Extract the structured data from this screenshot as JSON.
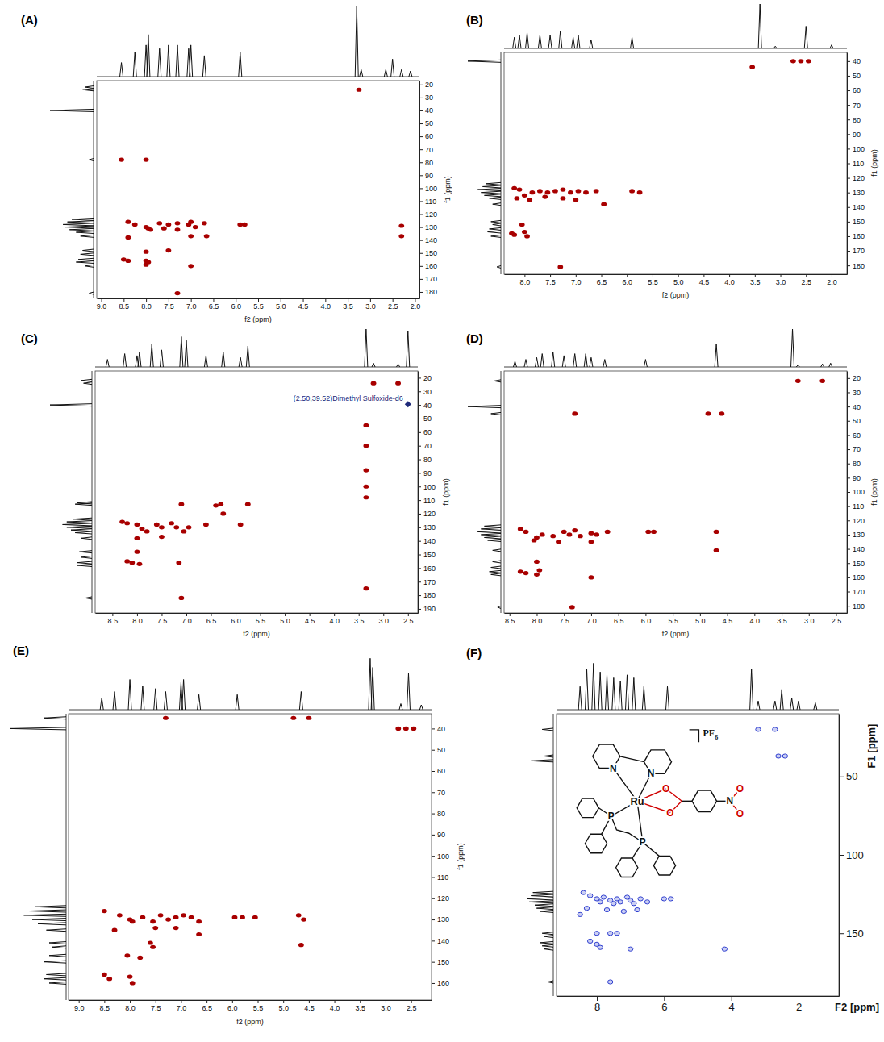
{
  "chart_data": [
    {
      "type": "scatter",
      "title": "(A)",
      "x_label": "f2 (ppm)",
      "y_label": "f1 (ppm)",
      "color": "#a80000",
      "marker": "ellipse",
      "xlim": [
        9.1,
        1.9
      ],
      "xticks": [
        {
          "value": 9,
          "label": "9.0"
        },
        8.5,
        {
          "value": 8,
          "label": "8.0"
        },
        7.5,
        {
          "value": 7,
          "label": "7.0"
        },
        6.5,
        {
          "value": 6,
          "label": "6.0"
        },
        5.5,
        {
          "value": 5,
          "label": "5.0"
        },
        4.5,
        {
          "value": 4,
          "label": "4.0"
        },
        3.5,
        {
          "value": 3,
          "label": "3.0"
        },
        2.5,
        {
          "value": 2,
          "label": "2.0"
        }
      ],
      "ylim": [
        17,
        185
      ],
      "yticks": [
        20,
        30,
        40,
        50,
        60,
        70,
        80,
        90,
        100,
        110,
        120,
        130,
        140,
        150,
        160,
        170,
        180
      ],
      "x": [
        8.55,
        8.0,
        8.4,
        8.25,
        8.0,
        7.95,
        7.9,
        7.7,
        7.5,
        7.3,
        7.05,
        7.0,
        6.9,
        6.7,
        5.9,
        5.8,
        8.4,
        7.0,
        6.65,
        7.5,
        8.0,
        8.5,
        8.4,
        8.0,
        7.95,
        8.0,
        7.0,
        7.3,
        3.25,
        2.3,
        2.3,
        7.6,
        7.3
      ],
      "values": [
        78,
        78,
        126,
        128,
        130,
        131,
        132,
        127,
        128,
        127,
        128,
        126,
        130,
        127,
        128,
        128,
        138,
        137,
        137,
        148,
        149,
        155,
        156,
        156,
        157,
        159,
        160,
        181,
        24,
        129,
        137,
        131,
        132
      ],
      "projection_f2": {
        "ppm": [
          8.55,
          8.25,
          8.0,
          7.95,
          7.7,
          7.5,
          7.3,
          7.05,
          7.0,
          6.7,
          5.9,
          3.3,
          3.2,
          2.65,
          2.5,
          2.3,
          2.1
        ],
        "intensity": [
          20,
          35,
          45,
          60,
          40,
          45,
          45,
          40,
          45,
          30,
          35,
          100,
          10,
          10,
          25,
          10,
          8
        ],
        "lim": [
          0,
          100
        ]
      },
      "projection_f1": {
        "ppm": [
          22,
          24,
          40,
          78,
          124,
          126,
          128,
          130,
          132,
          134,
          137,
          148,
          151,
          155,
          157,
          160,
          181
        ],
        "intensity": [
          20,
          25,
          100,
          10,
          50,
          60,
          70,
          65,
          55,
          40,
          30,
          25,
          30,
          35,
          40,
          20,
          10
        ],
        "lim": [
          0,
          100
        ]
      }
    },
    {
      "type": "scatter",
      "title": "(B)",
      "x_label": "f2 (ppm)",
      "y_label": "f1 (ppm)",
      "color": "#a80000",
      "marker": "ellipse",
      "xlim": [
        8.4,
        1.7
      ],
      "xticks": [
        {
          "value": 8,
          "label": "8.0"
        },
        7.5,
        {
          "value": 7,
          "label": "7.0"
        },
        6.5,
        {
          "value": 6,
          "label": "6.0"
        },
        5.5,
        {
          "value": 5,
          "label": "5.0"
        },
        4.5,
        {
          "value": 4,
          "label": "4.0"
        },
        3.5,
        {
          "value": 3,
          "label": "3.0"
        },
        2.5,
        {
          "value": 2,
          "label": "2.0"
        }
      ],
      "ylim": [
        34,
        186
      ],
      "yticks": [
        40,
        50,
        60,
        70,
        80,
        90,
        100,
        110,
        120,
        130,
        140,
        150,
        160,
        170,
        180
      ],
      "x": [
        8.2,
        8.1,
        8.0,
        7.85,
        7.7,
        7.55,
        7.4,
        7.25,
        7.1,
        6.95,
        6.8,
        6.6,
        5.9,
        5.75,
        8.15,
        7.9,
        7.6,
        7.25,
        7.0,
        6.45,
        8.25,
        8.2,
        8.0,
        7.95,
        8.05,
        7.3,
        2.75,
        2.6,
        2.45,
        3.55
      ],
      "values": [
        127,
        128,
        132,
        130,
        129,
        130,
        129,
        128,
        130,
        129,
        130,
        129,
        129,
        130,
        134,
        135,
        133,
        134,
        135,
        138,
        158,
        159,
        157,
        160,
        152,
        181,
        40,
        40,
        40,
        44
      ],
      "projection_f2": {
        "ppm": [
          8.2,
          8.1,
          7.95,
          7.7,
          7.5,
          7.3,
          7.05,
          6.95,
          6.7,
          5.9,
          3.4,
          3.1,
          2.5,
          2.0
        ],
        "intensity": [
          25,
          30,
          35,
          30,
          30,
          40,
          25,
          30,
          20,
          25,
          100,
          5,
          50,
          8
        ],
        "lim": [
          0,
          100
        ]
      },
      "projection_f1": {
        "ppm": [
          40,
          124,
          126,
          128,
          130,
          132,
          134,
          138,
          150,
          152,
          155,
          157,
          160,
          181
        ],
        "intensity": [
          100,
          45,
          55,
          70,
          60,
          50,
          35,
          25,
          30,
          25,
          35,
          40,
          30,
          12
        ],
        "lim": [
          0,
          100
        ]
      }
    },
    {
      "type": "scatter",
      "title": "(C)",
      "x_label": "f2 (ppm)",
      "y_label": "f1 (ppm)",
      "color": "#a80000",
      "marker": "ellipse",
      "xlim": [
        8.85,
        2.3
      ],
      "xticks": [
        8.5,
        {
          "value": 8,
          "label": "8.0"
        },
        7.5,
        {
          "value": 7,
          "label": "7.0"
        },
        6.5,
        {
          "value": 6,
          "label": "6.0"
        },
        5.5,
        {
          "value": 5,
          "label": "5.0"
        },
        4.5,
        {
          "value": 4,
          "label": "4.0"
        },
        3.5,
        {
          "value": 3,
          "label": "3.0"
        },
        2.5
      ],
      "ylim": [
        15,
        193
      ],
      "yticks": [
        20,
        30,
        40,
        50,
        60,
        70,
        80,
        90,
        100,
        110,
        120,
        130,
        140,
        150,
        160,
        170,
        180,
        190
      ],
      "x": [
        8.3,
        8.2,
        8.0,
        7.9,
        7.8,
        7.6,
        7.5,
        7.3,
        7.2,
        7.05,
        6.95,
        6.6,
        6.3,
        6.25,
        5.9,
        5.75,
        7.1,
        6.4,
        8.2,
        8.1,
        7.95,
        8.0,
        7.15,
        7.1,
        8.0,
        7.5,
        3.2,
        2.7,
        3.35,
        3.35,
        3.35,
        3.35,
        3.35,
        3.35
      ],
      "values": [
        126,
        127,
        128,
        131,
        133,
        128,
        130,
        127,
        130,
        133,
        130,
        128,
        113,
        120,
        128,
        113,
        113,
        114,
        155,
        156,
        157,
        148,
        156,
        182,
        138,
        137,
        24,
        24,
        55,
        70,
        88,
        100,
        108,
        175
      ],
      "annotation": {
        "text": "(2.50,39.52)Dimethyl Sulfoxide-d6",
        "x": 2.5,
        "y": 39.52
      },
      "projection_f2": {
        "ppm": [
          8.6,
          8.25,
          8.0,
          7.95,
          7.7,
          7.5,
          7.1,
          7.0,
          6.6,
          6.25,
          5.9,
          5.75,
          3.35,
          3.2,
          2.7,
          2.5
        ],
        "intensity": [
          20,
          35,
          30,
          40,
          60,
          45,
          80,
          70,
          30,
          40,
          25,
          55,
          100,
          10,
          8,
          95
        ],
        "lim": [
          0,
          100
        ]
      },
      "projection_f1": {
        "ppm": [
          22,
          24,
          40,
          112,
          113,
          124,
          126,
          128,
          130,
          132,
          134,
          138,
          148,
          152,
          156,
          158,
          182
        ],
        "intensity": [
          25,
          20,
          100,
          35,
          40,
          45,
          60,
          70,
          60,
          50,
          40,
          25,
          30,
          25,
          35,
          35,
          15
        ],
        "lim": [
          0,
          100
        ]
      }
    },
    {
      "type": "scatter",
      "title": "(D)",
      "x_label": "f2 (ppm)",
      "y_label": "f1 (ppm)",
      "color": "#a80000",
      "marker": "ellipse",
      "xlim": [
        8.6,
        2.3
      ],
      "xticks": [
        8.5,
        {
          "value": 8,
          "label": "8.0"
        },
        7.5,
        {
          "value": 7,
          "label": "7.0"
        },
        6.5,
        {
          "value": 6,
          "label": "6.0"
        },
        5.5,
        {
          "value": 5,
          "label": "5.0"
        },
        4.5,
        {
          "value": 4,
          "label": "4.0"
        },
        3.5,
        {
          "value": 3,
          "label": "3.0"
        },
        2.5
      ],
      "ylim": [
        15,
        185
      ],
      "yticks": [
        20,
        30,
        40,
        50,
        60,
        70,
        80,
        90,
        100,
        110,
        120,
        130,
        140,
        150,
        160,
        170,
        180
      ],
      "x": [
        8.3,
        8.2,
        8.0,
        7.9,
        7.7,
        7.5,
        7.4,
        7.3,
        7.2,
        7.0,
        6.9,
        6.7,
        5.95,
        5.85,
        7.6,
        7.0,
        8.05,
        8.3,
        8.2,
        8.0,
        7.95,
        8.0,
        7.0,
        7.35,
        7.3,
        4.85,
        4.6,
        4.7,
        4.7,
        3.2,
        2.75
      ],
      "values": [
        126,
        128,
        132,
        130,
        131,
        128,
        130,
        127,
        131,
        129,
        130,
        128,
        128,
        128,
        135,
        135,
        134,
        156,
        157,
        158,
        155,
        149,
        160,
        181,
        45,
        45,
        45,
        128,
        141,
        22,
        22
      ],
      "projection_f2": {
        "ppm": [
          8.4,
          8.2,
          8.0,
          7.9,
          7.7,
          7.5,
          7.3,
          7.1,
          7.0,
          6.75,
          6.0,
          4.7,
          3.3,
          3.2,
          2.75,
          2.6
        ],
        "intensity": [
          15,
          20,
          25,
          35,
          40,
          30,
          35,
          35,
          25,
          20,
          20,
          60,
          100,
          5,
          8,
          10
        ],
        "lim": [
          0,
          100
        ]
      },
      "projection_f1": {
        "ppm": [
          22,
          40,
          45,
          124,
          126,
          128,
          130,
          132,
          134,
          141,
          149,
          153,
          156,
          158,
          181
        ],
        "intensity": [
          20,
          100,
          30,
          50,
          60,
          70,
          60,
          50,
          40,
          25,
          25,
          30,
          35,
          30,
          10
        ],
        "lim": [
          0,
          100
        ]
      }
    },
    {
      "type": "scatter",
      "title": "(E)",
      "x_label": "f2 (ppm)",
      "y_label": "f1 (ppm)",
      "color": "#a80000",
      "marker": "ellipse",
      "xlim": [
        9.2,
        2.1
      ],
      "xticks": [
        {
          "value": 9,
          "label": "9.0"
        },
        8.5,
        {
          "value": 8,
          "label": "8.0"
        },
        7.5,
        {
          "value": 7,
          "label": "7.0"
        },
        6.5,
        {
          "value": 6,
          "label": "6.0"
        },
        5.5,
        {
          "value": 5,
          "label": "5.0"
        },
        4.5,
        {
          "value": 4,
          "label": "4.0"
        },
        3.5,
        {
          "value": 3,
          "label": "3.0"
        },
        2.5
      ],
      "ylim": [
        33,
        168
      ],
      "yticks": [
        40,
        50,
        60,
        70,
        80,
        90,
        100,
        110,
        120,
        130,
        140,
        150,
        160
      ],
      "x": [
        8.5,
        8.2,
        8.0,
        7.95,
        7.75,
        7.55,
        7.4,
        7.25,
        7.1,
        6.95,
        6.8,
        6.65,
        5.95,
        5.8,
        5.55,
        4.7,
        4.6,
        8.3,
        7.5,
        7.1,
        6.65,
        7.6,
        7.55,
        4.65,
        8.05,
        7.8,
        8.5,
        8.4,
        8.0,
        7.95,
        7.3,
        4.8,
        4.5,
        2.75,
        2.6,
        2.45
      ],
      "values": [
        126,
        128,
        130,
        131,
        129,
        131,
        128,
        130,
        129,
        128,
        129,
        131,
        129,
        129,
        129,
        128,
        130,
        135,
        134,
        134,
        137,
        141,
        143,
        142,
        147,
        148,
        156,
        158,
        157,
        160,
        35,
        35,
        35,
        40,
        40,
        40
      ],
      "projection_f2": {
        "ppm": [
          8.55,
          8.3,
          8.0,
          7.75,
          7.5,
          7.3,
          7.0,
          6.95,
          6.65,
          5.9,
          4.65,
          3.3,
          3.25,
          2.7,
          2.55,
          2.3
        ],
        "intensity": [
          20,
          30,
          50,
          40,
          35,
          30,
          45,
          50,
          25,
          25,
          30,
          85,
          70,
          10,
          60,
          8
        ],
        "lim": [
          0,
          100
        ]
      },
      "projection_f1": {
        "ppm": [
          35,
          40,
          124,
          126,
          128,
          130,
          132,
          135,
          141,
          143,
          147,
          150,
          156,
          158,
          160
        ],
        "intensity": [
          40,
          100,
          55,
          65,
          75,
          60,
          50,
          35,
          30,
          25,
          30,
          40,
          35,
          40,
          30
        ],
        "lim": [
          0,
          100
        ]
      }
    },
    {
      "type": "scatter",
      "title": "(F)",
      "x_label": "F2 [ppm]",
      "y_label": "F1 [ppm]",
      "color": "#2f3fd0",
      "marker": "open_ellipse",
      "xlim": [
        9.2,
        0.8
      ],
      "xticks": [
        8,
        6,
        4,
        2
      ],
      "ylim": [
        10,
        190
      ],
      "yticks": [
        50,
        100,
        150
      ],
      "x": [
        8.4,
        8.2,
        8.0,
        7.9,
        7.8,
        7.6,
        7.5,
        7.4,
        7.3,
        7.1,
        7.0,
        6.9,
        6.7,
        6.5,
        6.0,
        5.8,
        8.3,
        7.7,
        7.2,
        6.8,
        8.5,
        8.2,
        8.0,
        7.9,
        7.6,
        7.4,
        8.0,
        7.0,
        7.6,
        4.2,
        3.2,
        2.7,
        2.6,
        2.4
      ],
      "values": [
        124,
        126,
        128,
        130,
        127,
        129,
        131,
        128,
        130,
        127,
        129,
        131,
        128,
        130,
        128,
        128,
        134,
        135,
        136,
        135,
        138,
        155,
        157,
        159,
        150,
        150,
        150,
        160,
        181,
        160,
        20,
        20,
        37,
        37
      ],
      "structure": {
        "atoms": [
          "N",
          "N",
          "Ru",
          "O",
          "O",
          "N",
          "O",
          "O",
          "P",
          "P"
        ],
        "counterion": "PF6"
      },
      "projection_f2": {
        "ppm": [
          8.5,
          8.3,
          8.1,
          7.9,
          7.7,
          7.5,
          7.3,
          7.1,
          6.9,
          6.6,
          5.9,
          3.4,
          3.2,
          2.7,
          2.5,
          2.2,
          2.0,
          1.5
        ],
        "intensity": [
          40,
          70,
          80,
          65,
          60,
          55,
          50,
          60,
          55,
          40,
          40,
          70,
          15,
          15,
          35,
          20,
          15,
          12
        ],
        "lim": [
          0,
          100
        ]
      },
      "projection_f1": {
        "ppm": [
          20,
          37,
          40,
          124,
          126,
          128,
          130,
          132,
          134,
          136,
          150,
          152,
          156,
          158,
          160,
          181
        ],
        "intensity": [
          30,
          25,
          60,
          55,
          60,
          70,
          65,
          50,
          45,
          35,
          30,
          25,
          35,
          30,
          25,
          15
        ],
        "lim": [
          0,
          100
        ]
      }
    }
  ]
}
